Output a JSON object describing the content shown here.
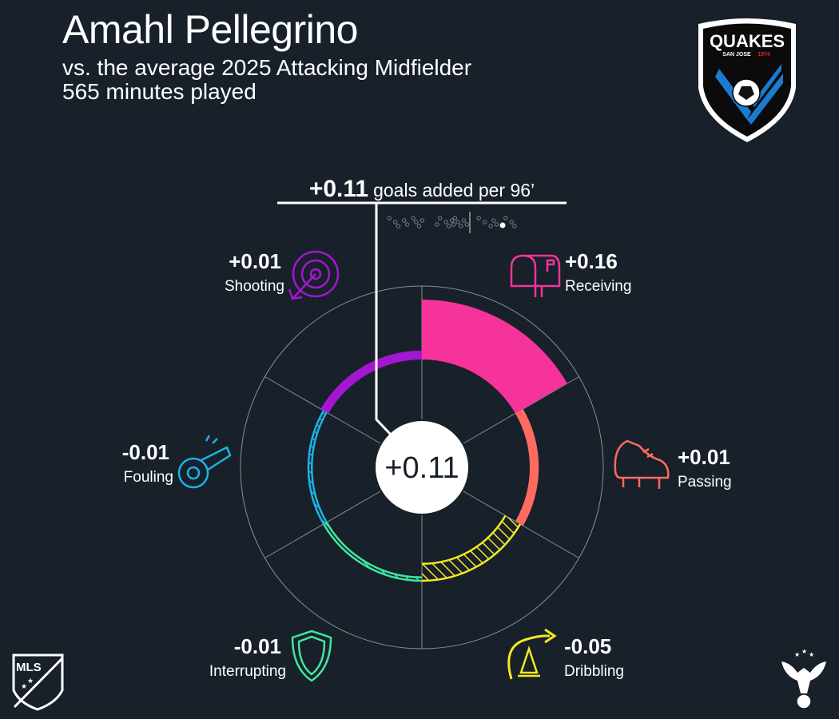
{
  "header": {
    "player_name": "Amahl Pellegrino",
    "comparison": "vs. the average 2025 Attacking Midfielder",
    "minutes": "565 minutes played"
  },
  "logos": {
    "club_text": "QUAKES",
    "club_sub": "SAN JOSE",
    "club_year": "1974",
    "league_text": "MLS"
  },
  "chart_data": {
    "type": "radial-bar",
    "headline_value": "+0.11",
    "headline_label": "goals added per 96’",
    "center_value": "+0.11",
    "rlim": [
      -0.2,
      0.2
    ],
    "colors": {
      "Receiving": "#f5339b",
      "Passing": "#ff6b61",
      "Dribbling": "#f3e924",
      "Interrupting": "#3fe6a1",
      "Fouling": "#1bb3e6",
      "Shooting": "#a317d1"
    },
    "categories": [
      {
        "name": "Receiving",
        "label": "+0.16",
        "value": 0.16
      },
      {
        "name": "Passing",
        "label": "+0.01",
        "value": 0.01
      },
      {
        "name": "Dribbling",
        "label": "-0.05",
        "value": -0.05
      },
      {
        "name": "Interrupting",
        "label": "-0.01",
        "value": -0.01
      },
      {
        "name": "Fouling",
        "label": "-0.01",
        "value": -0.01
      },
      {
        "name": "Shooting",
        "label": "+0.01",
        "value": 0.01
      }
    ],
    "distribution": {
      "xlim": [
        -0.3,
        0.3
      ],
      "average": 0.0,
      "player": 0.11,
      "others": [
        -0.27,
        -0.25,
        -0.24,
        -0.22,
        -0.21,
        -0.19,
        -0.18,
        -0.17,
        -0.16,
        -0.11,
        -0.1,
        -0.08,
        -0.07,
        -0.06,
        -0.055,
        -0.05,
        -0.04,
        -0.03,
        -0.02,
        -0.01,
        0.03,
        0.05,
        0.07,
        0.08,
        0.09,
        0.12,
        0.14,
        0.15
      ]
    }
  }
}
